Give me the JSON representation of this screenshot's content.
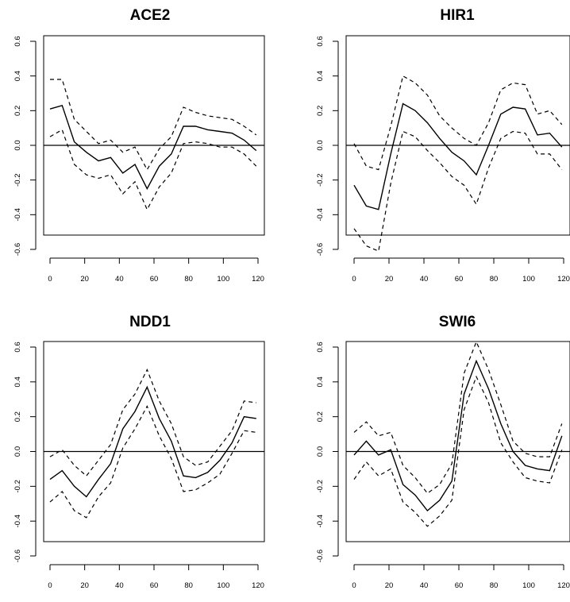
{
  "chart_data": [
    {
      "type": "line",
      "title": "ACE2",
      "x": [
        0,
        7,
        14,
        21,
        28,
        35,
        42,
        49,
        56,
        63,
        70,
        77,
        84,
        91,
        98,
        105,
        112,
        119
      ],
      "series": [
        {
          "role": "mean",
          "values": [
            0.21,
            0.23,
            0.02,
            -0.04,
            -0.09,
            -0.07,
            -0.16,
            -0.11,
            -0.25,
            -0.12,
            -0.05,
            0.11,
            0.11,
            0.09,
            0.08,
            0.07,
            0.03,
            -0.03
          ]
        },
        {
          "role": "upper",
          "values": [
            0.38,
            0.38,
            0.15,
            0.08,
            0.01,
            0.03,
            -0.04,
            -0.01,
            -0.14,
            -0.02,
            0.05,
            0.22,
            0.19,
            0.17,
            0.16,
            0.15,
            0.11,
            0.06
          ]
        },
        {
          "role": "lower",
          "values": [
            0.05,
            0.09,
            -0.11,
            -0.17,
            -0.19,
            -0.17,
            -0.28,
            -0.21,
            -0.37,
            -0.24,
            -0.16,
            0.01,
            0.02,
            0.01,
            -0.01,
            -0.01,
            -0.05,
            -0.12
          ]
        }
      ],
      "xlim": [
        0,
        120
      ],
      "ylim": [
        -0.6,
        0.6
      ],
      "xticks": [
        0,
        20,
        40,
        60,
        80,
        100,
        120
      ],
      "yticks": [
        -0.6,
        -0.4,
        -0.2,
        0.0,
        0.2,
        0.4,
        0.6
      ],
      "xtick_labels": [
        "0",
        "20",
        "40",
        "60",
        "80",
        "100",
        "120"
      ],
      "ytick_labels": [
        "-0.6",
        "-0.4",
        "-0.2",
        "0.0",
        "0.2",
        "0.4",
        "0.6"
      ],
      "hline": 0,
      "grid": false
    },
    {
      "type": "line",
      "title": "HIR1",
      "x": [
        0,
        7,
        14,
        21,
        28,
        35,
        42,
        49,
        56,
        63,
        70,
        77,
        84,
        91,
        98,
        105,
        112,
        119
      ],
      "series": [
        {
          "role": "mean",
          "values": [
            -0.23,
            -0.35,
            -0.37,
            -0.05,
            0.24,
            0.2,
            0.13,
            0.04,
            -0.04,
            -0.09,
            -0.17,
            0.0,
            0.18,
            0.22,
            0.21,
            0.06,
            0.07,
            -0.01
          ]
        },
        {
          "role": "upper",
          "values": [
            0.01,
            -0.12,
            -0.14,
            0.11,
            0.4,
            0.36,
            0.29,
            0.17,
            0.1,
            0.04,
            0.0,
            0.13,
            0.32,
            0.36,
            0.35,
            0.18,
            0.2,
            0.12
          ]
        },
        {
          "role": "lower",
          "values": [
            -0.48,
            -0.58,
            -0.61,
            -0.22,
            0.08,
            0.05,
            -0.03,
            -0.1,
            -0.18,
            -0.23,
            -0.34,
            -0.13,
            0.04,
            0.08,
            0.07,
            -0.05,
            -0.05,
            -0.14
          ]
        }
      ],
      "xlim": [
        0,
        120
      ],
      "ylim": [
        -0.6,
        0.6
      ],
      "xticks": [
        0,
        20,
        40,
        60,
        80,
        100,
        120
      ],
      "yticks": [
        -0.6,
        -0.4,
        -0.2,
        0.0,
        0.2,
        0.4,
        0.6
      ],
      "xtick_labels": [
        "0",
        "20",
        "40",
        "60",
        "80",
        "100",
        "120"
      ],
      "ytick_labels": [
        "-0.6",
        "-0.4",
        "-0.2",
        "0.0",
        "0.2",
        "0.4",
        "0.6"
      ],
      "hline": 0,
      "grid": false
    },
    {
      "type": "line",
      "title": "NDD1",
      "x": [
        0,
        7,
        14,
        21,
        28,
        35,
        42,
        49,
        56,
        63,
        70,
        77,
        84,
        91,
        98,
        105,
        112,
        119
      ],
      "series": [
        {
          "role": "mean",
          "values": [
            -0.16,
            -0.11,
            -0.2,
            -0.26,
            -0.16,
            -0.07,
            0.13,
            0.23,
            0.37,
            0.19,
            0.06,
            -0.14,
            -0.15,
            -0.12,
            -0.05,
            0.05,
            0.2,
            0.19
          ]
        },
        {
          "role": "upper",
          "values": [
            -0.03,
            0.01,
            -0.08,
            -0.14,
            -0.05,
            0.04,
            0.24,
            0.33,
            0.47,
            0.29,
            0.16,
            -0.03,
            -0.08,
            -0.06,
            0.03,
            0.12,
            0.29,
            0.28
          ]
        },
        {
          "role": "lower",
          "values": [
            -0.29,
            -0.23,
            -0.34,
            -0.38,
            -0.26,
            -0.18,
            0.02,
            0.13,
            0.26,
            0.09,
            -0.04,
            -0.23,
            -0.22,
            -0.18,
            -0.13,
            -0.01,
            0.12,
            0.11
          ]
        }
      ],
      "xlim": [
        0,
        120
      ],
      "ylim": [
        -0.6,
        0.6
      ],
      "xticks": [
        0,
        20,
        40,
        60,
        80,
        100,
        120
      ],
      "yticks": [
        -0.6,
        -0.4,
        -0.2,
        0.0,
        0.2,
        0.4,
        0.6
      ],
      "xtick_labels": [
        "0",
        "20",
        "40",
        "60",
        "80",
        "100",
        "120"
      ],
      "ytick_labels": [
        "-0.6",
        "-0.4",
        "-0.2",
        "0.0",
        "0.2",
        "0.4",
        "0.6"
      ],
      "hline": 0,
      "grid": false
    },
    {
      "type": "line",
      "title": "SWI6",
      "x": [
        0,
        7,
        14,
        21,
        28,
        35,
        42,
        49,
        56,
        63,
        70,
        77,
        84,
        91,
        98,
        105,
        112,
        119
      ],
      "series": [
        {
          "role": "mean",
          "values": [
            -0.02,
            0.06,
            -0.02,
            0.01,
            -0.19,
            -0.25,
            -0.34,
            -0.28,
            -0.17,
            0.33,
            0.52,
            0.36,
            0.16,
            0.0,
            -0.08,
            -0.1,
            -0.11,
            0.09
          ]
        },
        {
          "role": "upper",
          "values": [
            0.11,
            0.17,
            0.09,
            0.11,
            -0.08,
            -0.15,
            -0.24,
            -0.19,
            -0.07,
            0.45,
            0.63,
            0.47,
            0.27,
            0.06,
            -0.01,
            -0.03,
            -0.03,
            0.16
          ]
        },
        {
          "role": "lower",
          "values": [
            -0.16,
            -0.06,
            -0.14,
            -0.1,
            -0.29,
            -0.35,
            -0.43,
            -0.37,
            -0.28,
            0.24,
            0.43,
            0.28,
            0.05,
            -0.06,
            -0.15,
            -0.17,
            -0.18,
            0.01
          ]
        }
      ],
      "xlim": [
        0,
        120
      ],
      "ylim": [
        -0.6,
        0.6
      ],
      "xticks": [
        0,
        20,
        40,
        60,
        80,
        100,
        120
      ],
      "yticks": [
        -0.6,
        -0.4,
        -0.2,
        0.0,
        0.2,
        0.4,
        0.6
      ],
      "xtick_labels": [
        "0",
        "20",
        "40",
        "60",
        "80",
        "100",
        "120"
      ],
      "ytick_labels": [
        "-0.6",
        "-0.4",
        "-0.2",
        "0.0",
        "0.2",
        "0.4",
        "0.6"
      ],
      "hline": 0,
      "grid": false
    }
  ]
}
